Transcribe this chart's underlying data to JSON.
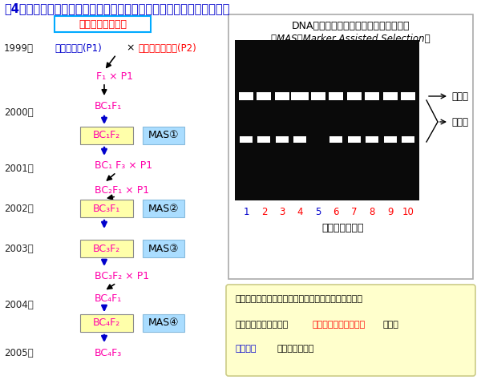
{
  "title": "図4．マーカー選抜を用いた戻し交配による病害虫抵抗性遺伝子の導入",
  "title_color": "#0000CC",
  "bg_color": "#ffffff",
  "left_box_label": "抵抗性系統の育成",
  "left_box_text_color": "#FF0000",
  "left_box_border_color": "#00AAFF",
  "years": [
    "1999年",
    "2000年",
    "2001年",
    "2002年",
    "2003年",
    "2004年",
    "2005年"
  ],
  "gel_title": "DNAマーカーによる抵抗性の判別と選抜",
  "gel_subtitle": "（MAS：Marker Assisted Selection）",
  "gel_lane_numbers": [
    "1",
    "2",
    "3",
    "4",
    "5",
    "6",
    "7",
    "8",
    "9",
    "10"
  ],
  "gel_lane_colors": [
    "#0000CC",
    "#FF0000",
    "#FF0000",
    "#FF0000",
    "#0000CC",
    "#FF0000",
    "#FF0000",
    "#FF0000",
    "#FF0000",
    "#FF0000"
  ],
  "gel_xlabel": "育成ダイズ系統",
  "sensitivity_label": "感受性",
  "resistance_label": "抵抗性",
  "note_bg": "#FFFFCC",
  "note_line1": "白いバンドが出る位置で、抵抗性遺伝子をもっている",
  "note_line2a": "ダイズか推定できる。",
  "note_line2b": "赤字のダイズは抵抗性",
  "note_line2c": "、青字",
  "note_line3a": "は感受性",
  "note_line3b": "と判定される。"
}
